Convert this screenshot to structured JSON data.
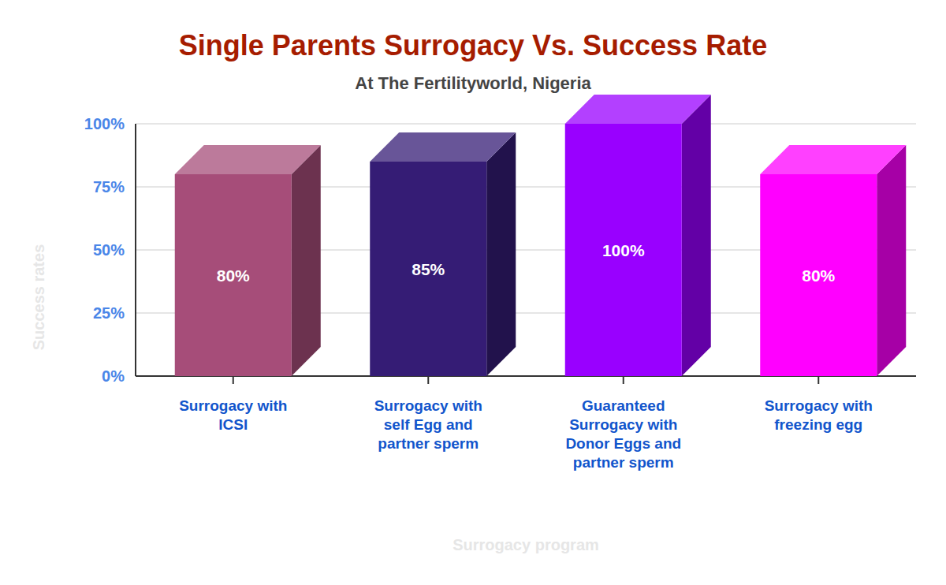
{
  "chart_data": {
    "type": "bar",
    "title": "Single Parents Surrogacy Vs. Success Rate",
    "subtitle": "At The Fertilityworld, Nigeria",
    "x_label": "Surrogacy program",
    "y_label": "Success rates",
    "categories": [
      "Surrogacy with ICSI",
      "Surrogacy with self Egg and partner sperm",
      "Guaranteed Surrogacy with Donor Eggs and partner sperm",
      "Surrogacy with freezing egg"
    ],
    "values": [
      80,
      85,
      100,
      80
    ],
    "value_labels": [
      "80%",
      "85%",
      "100%",
      "80%"
    ],
    "colors": [
      "#a64d79",
      "#351c75",
      "#9900ff",
      "#ff00ff"
    ],
    "ylim": [
      0,
      100
    ],
    "yticks": [
      {
        "value": 0,
        "label": "0%"
      },
      {
        "value": 25,
        "label": "25%"
      },
      {
        "value": 50,
        "label": "50%"
      },
      {
        "value": 75,
        "label": "75%"
      },
      {
        "value": 100,
        "label": "100%"
      }
    ],
    "grid": true,
    "data_labels": true
  }
}
